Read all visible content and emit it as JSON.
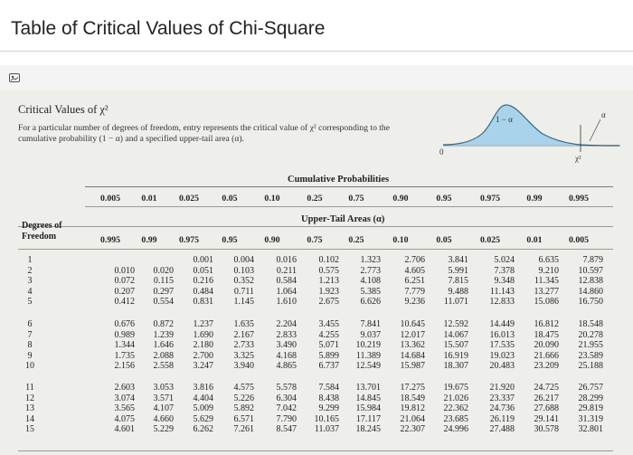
{
  "page": {
    "title": "Table of Critical Values of Chi-Square"
  },
  "card": {
    "icon": "image-icon"
  },
  "intro": {
    "title": "Critical Values of χ²",
    "description": "For a particular number of degrees of freedom, entry represents the critical value of χ² corresponding to the cumulative probability (1 − α) and a specified upper-tail area (α)."
  },
  "figure": {
    "area_label": "1 − α",
    "tail_label": "α",
    "origin_label": "0",
    "x_label": "χ²",
    "fill_color": "#a9d3ea",
    "curve_color": "#2b6e96"
  },
  "table": {
    "cumulative_title": "Cumulative Probabilities",
    "upper_tail_title": "Upper-Tail Areas (α)",
    "df_header_line1": "Degrees of",
    "df_header_line2": "Freedom",
    "cumulative_probabilities": [
      "0.005",
      "0.01",
      "0.025",
      "0.05",
      "0.10",
      "0.25",
      "0.75",
      "0.90",
      "0.95",
      "0.975",
      "0.99",
      "0.995"
    ],
    "upper_tail_areas": [
      "0.995",
      "0.99",
      "0.975",
      "0.95",
      "0.90",
      "0.75",
      "0.25",
      "0.10",
      "0.05",
      "0.025",
      "0.01",
      "0.005"
    ],
    "rows": [
      {
        "df": "1",
        "values": [
          "",
          "",
          "0.001",
          "0.004",
          "0.016",
          "0.102",
          "1.323",
          "2.706",
          "3.841",
          "5.024",
          "6.635",
          "7.879"
        ]
      },
      {
        "df": "2",
        "values": [
          "0.010",
          "0.020",
          "0.051",
          "0.103",
          "0.211",
          "0.575",
          "2.773",
          "4.605",
          "5.991",
          "7.378",
          "9.210",
          "10.597"
        ]
      },
      {
        "df": "3",
        "values": [
          "0.072",
          "0.115",
          "0.216",
          "0.352",
          "0.584",
          "1.213",
          "4.108",
          "6.251",
          "7.815",
          "9.348",
          "11.345",
          "12.838"
        ]
      },
      {
        "df": "4",
        "values": [
          "0.207",
          "0.297",
          "0.484",
          "0.711",
          "1.064",
          "1.923",
          "5.385",
          "7.779",
          "9.488",
          "11.143",
          "13.277",
          "14.860"
        ]
      },
      {
        "df": "5",
        "values": [
          "0.412",
          "0.554",
          "0.831",
          "1.145",
          "1.610",
          "2.675",
          "6.626",
          "9.236",
          "11.071",
          "12.833",
          "15.086",
          "16.750"
        ]
      },
      {
        "df": "6",
        "values": [
          "0.676",
          "0.872",
          "1.237",
          "1.635",
          "2.204",
          "3.455",
          "7.841",
          "10.645",
          "12.592",
          "14.449",
          "16.812",
          "18.548"
        ]
      },
      {
        "df": "7",
        "values": [
          "0.989",
          "1.239",
          "1.690",
          "2.167",
          "2.833",
          "4.255",
          "9.037",
          "12.017",
          "14.067",
          "16.013",
          "18.475",
          "20.278"
        ]
      },
      {
        "df": "8",
        "values": [
          "1.344",
          "1.646",
          "2.180",
          "2.733",
          "3.490",
          "5.071",
          "10.219",
          "13.362",
          "15.507",
          "17.535",
          "20.090",
          "21.955"
        ]
      },
      {
        "df": "9",
        "values": [
          "1.735",
          "2.088",
          "2.700",
          "3.325",
          "4.168",
          "5.899",
          "11.389",
          "14.684",
          "16.919",
          "19.023",
          "21.666",
          "23.589"
        ]
      },
      {
        "df": "10",
        "values": [
          "2.156",
          "2.558",
          "3.247",
          "3.940",
          "4.865",
          "6.737",
          "12.549",
          "15.987",
          "18.307",
          "20.483",
          "23.209",
          "25.188"
        ]
      },
      {
        "df": "11",
        "values": [
          "2.603",
          "3.053",
          "3.816",
          "4.575",
          "5.578",
          "7.584",
          "13.701",
          "17.275",
          "19.675",
          "21.920",
          "24.725",
          "26.757"
        ]
      },
      {
        "df": "12",
        "values": [
          "3.074",
          "3.571",
          "4.404",
          "5.226",
          "6.304",
          "8.438",
          "14.845",
          "18.549",
          "21.026",
          "23.337",
          "26.217",
          "28.299"
        ]
      },
      {
        "df": "13",
        "values": [
          "3.565",
          "4.107",
          "5.009",
          "5.892",
          "7.042",
          "9.299",
          "15.984",
          "19.812",
          "22.362",
          "24.736",
          "27.688",
          "29.819"
        ]
      },
      {
        "df": "14",
        "values": [
          "4.075",
          "4.660",
          "5.629",
          "6.571",
          "7.790",
          "10.165",
          "17.117",
          "21.064",
          "23.685",
          "26.119",
          "29.141",
          "31.319"
        ]
      },
      {
        "df": "15",
        "values": [
          "4.601",
          "5.229",
          "6.262",
          "7.261",
          "8.547",
          "11.037",
          "18.245",
          "22.307",
          "24.996",
          "27.488",
          "30.578",
          "32.801"
        ]
      }
    ]
  }
}
